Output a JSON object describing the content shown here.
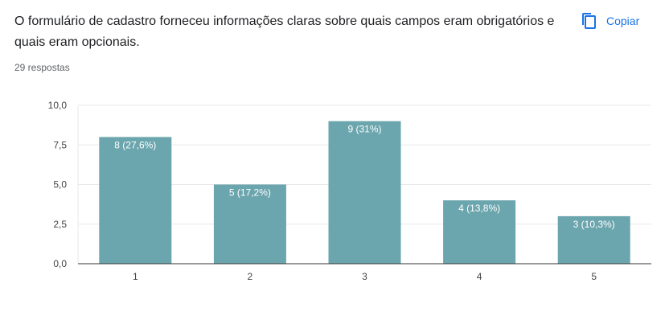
{
  "question": {
    "title": "O formulário de cadastro forneceu informações claras sobre quais campos eram obrigatórios e quais eram opcionais.",
    "responses": "29 respostas"
  },
  "toolbar": {
    "copy_label": "Copiar",
    "copy_icon": "copy-icon"
  },
  "colors": {
    "bar": "#6ba5ad",
    "accent": "#1a73e8",
    "grid": "#e8e8e8",
    "axis": "#333333"
  },
  "chart_data": {
    "type": "bar",
    "categories": [
      "1",
      "2",
      "3",
      "4",
      "5"
    ],
    "values": [
      8,
      5,
      9,
      4,
      3
    ],
    "data_labels": [
      "8 (27,6%)",
      "5 (17,2%)",
      "9 (31%)",
      "4 (13,8%)",
      "3 (10,3%)"
    ],
    "y_ticks": [
      "0,0",
      "2,5",
      "5,0",
      "7,5",
      "10,0"
    ],
    "ylim": [
      0,
      10
    ],
    "grid": true,
    "title": "",
    "xlabel": "",
    "ylabel": ""
  }
}
